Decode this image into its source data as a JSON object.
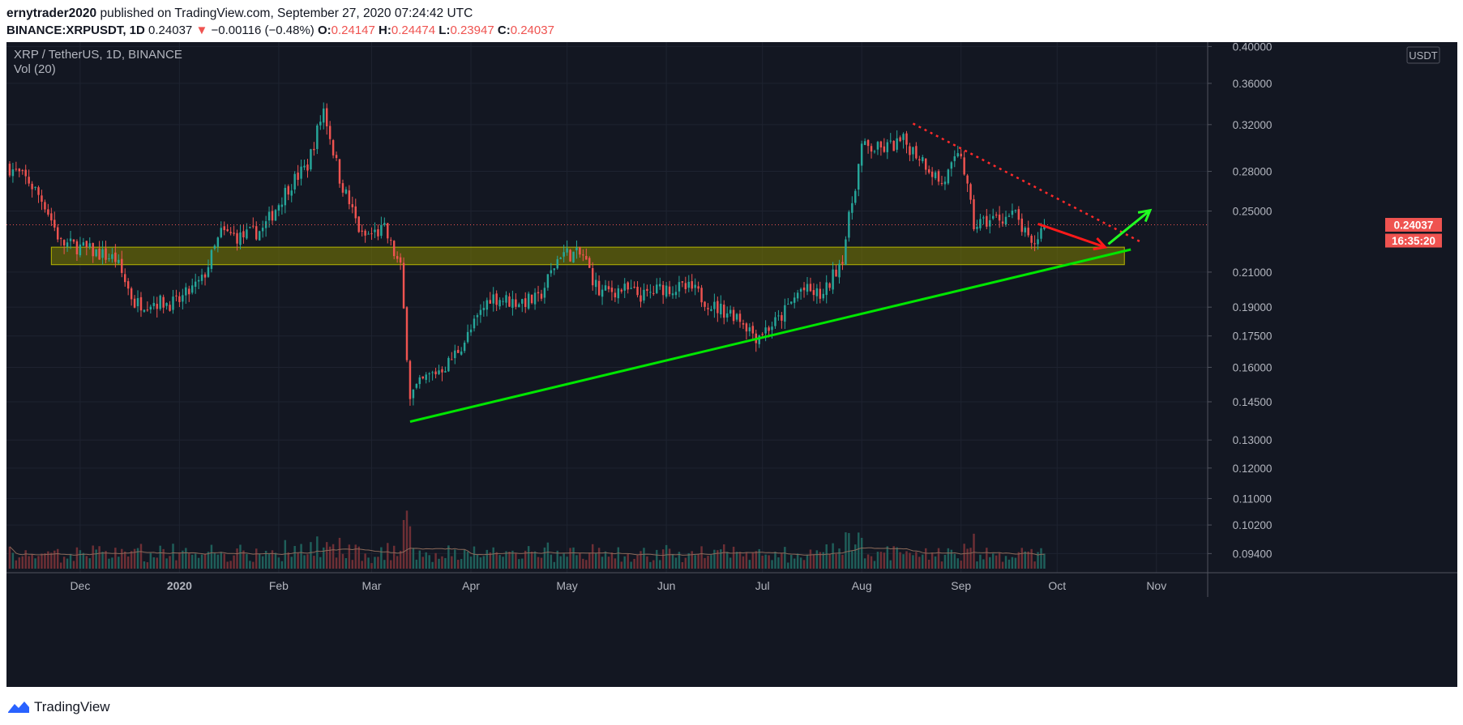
{
  "header": {
    "author": "ernytrader2020",
    "published": "published on TradingView.com, September 27, 2020 07:24:42 UTC",
    "symbol": "BINANCE:XRPUSDT, 1D",
    "last": "0.24037",
    "change_arrow": "▼",
    "change": "−0.00116 (−0.48%)",
    "o_label": "O:",
    "o": "0.24147",
    "h_label": "H:",
    "h": "0.24474",
    "l_label": "L:",
    "l": "0.23947",
    "c_label": "C:",
    "c": "0.24037"
  },
  "pane": {
    "title": "XRP / TetherUS, 1D, BINANCE",
    "volume_label": "Vol (20)",
    "currency": "USDT",
    "price_tag": "0.24037",
    "countdown": "16:35:20"
  },
  "footer": {
    "brand": "TradingView"
  },
  "colors": {
    "bg": "#131722",
    "grid": "#1e2330",
    "up": "#26a69a",
    "down": "#ef5350",
    "axis_text": "#b2b5be",
    "zone": "#808000",
    "trend": "#00e600"
  },
  "chart_data": {
    "type": "candlestick",
    "y_scale": "log",
    "ylim": [
      0.089,
      0.405
    ],
    "y_ticks": [
      "0.40000",
      "0.36000",
      "0.32000",
      "0.28000",
      "0.25000",
      "0.21000",
      "0.19000",
      "0.17500",
      "0.16000",
      "0.14500",
      "0.13000",
      "0.12000",
      "0.11000",
      "0.10200",
      "0.09400"
    ],
    "x_ticks": [
      "Dec",
      "2020",
      "Feb",
      "Mar",
      "Apr",
      "May",
      "Jun",
      "Jul",
      "Aug",
      "Sep",
      "Oct",
      "Nov"
    ],
    "x_range": [
      "2019-11-08",
      "2020-11-17"
    ],
    "close_path": [
      [
        "2019-11-08",
        0.285
      ],
      [
        "2019-11-15",
        0.272
      ],
      [
        "2019-11-20",
        0.255
      ],
      [
        "2019-11-25",
        0.228
      ],
      [
        "2019-11-30",
        0.226
      ],
      [
        "2019-12-06",
        0.222
      ],
      [
        "2019-12-12",
        0.218
      ],
      [
        "2019-12-18",
        0.192
      ],
      [
        "2019-12-24",
        0.193
      ],
      [
        "2019-12-31",
        0.192
      ],
      [
        "2020-01-08",
        0.205
      ],
      [
        "2020-01-14",
        0.235
      ],
      [
        "2020-01-20",
        0.232
      ],
      [
        "2020-01-27",
        0.237
      ],
      [
        "2020-02-04",
        0.268
      ],
      [
        "2020-02-10",
        0.285
      ],
      [
        "2020-02-15",
        0.335
      ],
      [
        "2020-02-20",
        0.275
      ],
      [
        "2020-02-27",
        0.232
      ],
      [
        "2020-03-05",
        0.237
      ],
      [
        "2020-03-10",
        0.212
      ],
      [
        "2020-03-13",
        0.148
      ],
      [
        "2020-03-18",
        0.155
      ],
      [
        "2020-03-25",
        0.162
      ],
      [
        "2020-03-31",
        0.175
      ],
      [
        "2020-04-07",
        0.196
      ],
      [
        "2020-04-14",
        0.193
      ],
      [
        "2020-04-22",
        0.194
      ],
      [
        "2020-04-29",
        0.222
      ],
      [
        "2020-05-06",
        0.22
      ],
      [
        "2020-05-11",
        0.198
      ],
      [
        "2020-05-18",
        0.2
      ],
      [
        "2020-05-25",
        0.196
      ],
      [
        "2020-05-31",
        0.201
      ],
      [
        "2020-06-09",
        0.2
      ],
      [
        "2020-06-16",
        0.19
      ],
      [
        "2020-06-23",
        0.186
      ],
      [
        "2020-06-29",
        0.175
      ],
      [
        "2020-07-06",
        0.183
      ],
      [
        "2020-07-13",
        0.2
      ],
      [
        "2020-07-20",
        0.196
      ],
      [
        "2020-07-26",
        0.22
      ],
      [
        "2020-08-01",
        0.3
      ],
      [
        "2020-08-07",
        0.298
      ],
      [
        "2020-08-14",
        0.305
      ],
      [
        "2020-08-20",
        0.29
      ],
      [
        "2020-08-26",
        0.27
      ],
      [
        "2020-09-01",
        0.295
      ],
      [
        "2020-09-05",
        0.24
      ],
      [
        "2020-09-12",
        0.245
      ],
      [
        "2020-09-18",
        0.247
      ],
      [
        "2020-09-23",
        0.225
      ],
      [
        "2020-09-27",
        0.24037
      ]
    ],
    "annotations": {
      "support_zone": {
        "x0": "2019-11-22",
        "x1": "2020-10-22",
        "y_low": 0.2145,
        "y_high": 0.2255
      },
      "ascending_trendline": {
        "x0": "2020-03-13",
        "y0": 0.137,
        "x1": "2020-10-24",
        "y1": 0.224
      },
      "descending_dotted_line": {
        "x0": "2020-08-17",
        "y0": 0.321,
        "x1": "2020-10-27",
        "y1": 0.229
      },
      "red_arrow": {
        "x0": "2020-09-25",
        "y0": 0.241,
        "x1": "2020-10-16",
        "y1": 0.2255
      },
      "green_arrow": {
        "x0": "2020-10-17",
        "y0": 0.2275,
        "x1": "2020-10-30",
        "y1": 0.2505
      }
    }
  }
}
